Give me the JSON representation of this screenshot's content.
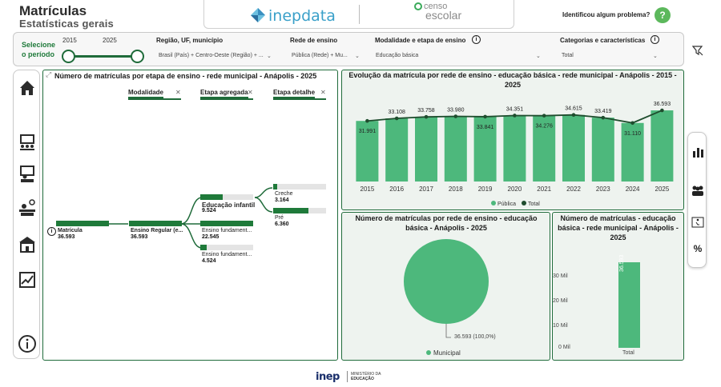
{
  "header": {
    "title": "Matrículas",
    "subtitle": "Estatísticas gerais",
    "logo_inep": "inepdata",
    "logo_censo_line1": "censo",
    "logo_censo_line2": "escolar",
    "help_text": "Identificou algum problema?",
    "help_icon": "?"
  },
  "filters": {
    "period_label_1": "Selecione",
    "period_label_2": "o período",
    "year_start": "2015",
    "year_end": "2025",
    "region_label": "Região, UF, município",
    "region_value": "Brasil (País) + Centro-Oeste (Região) + ...",
    "network_label": "Rede de ensino",
    "network_value": "Pública (Rede) + Mu...",
    "modality_label": "Modalidade e etapa de ensino",
    "modality_value": "Educação básica",
    "categories_label": "Categorias e características",
    "categories_value": "Total"
  },
  "tree": {
    "title": "Número de matrículas por etapa de ensino - rede municipal - Anápolis - 2025",
    "tabs": [
      "Modalidade",
      "Etapa agregada",
      "Etapa detalhe"
    ],
    "root": {
      "label": "Matrícula",
      "value": "36.593",
      "fraction": 1.0
    },
    "level1": {
      "label": "Ensino Regular (e...",
      "value": "36.593",
      "fraction": 1.0
    },
    "level2": [
      {
        "label": "Educação infantil",
        "value": "9.524",
        "fraction": 0.42
      },
      {
        "label": "Ensino fundament...",
        "value": "22.545",
        "fraction": 1.0
      },
      {
        "label": "Ensino fundament...",
        "value": "4.524",
        "fraction": 0.12
      }
    ],
    "level3": [
      {
        "label": "Creche",
        "value": "3.164",
        "fraction": 0.07
      },
      {
        "label": "Pré",
        "value": "6.360",
        "fraction": 0.67
      }
    ]
  },
  "evolution": {
    "title": "Evolução da matrícula por rede de ensino - educação básica - rede municipal - Anápolis - 2015 - 2025",
    "legend_publica": "Pública",
    "legend_total": "Total",
    "colors": {
      "bar": "#4db87c",
      "line": "#1f4d2e"
    }
  },
  "pie": {
    "title": "Número de matrículas por rede de ensino - educação básica - Anápolis - 2025",
    "slice_label": "36.593 (100,0%)",
    "legend": "Municipal",
    "color": "#4db87c"
  },
  "single_bar": {
    "title": "Número de matrículas - educação básica - rede municipal - Anápolis - 2025",
    "ticks": [
      "30 Mil",
      "20 Mil",
      "10 Mil",
      "0 Mil"
    ],
    "bar_label": "36.593",
    "x_label": "Total"
  },
  "chart_data": [
    {
      "type": "bar",
      "title": "Evolução da matrícula por rede de ensino - educação básica - rede municipal - Anápolis - 2015 - 2025",
      "categories": [
        "2015",
        "2016",
        "2017",
        "2018",
        "2019",
        "2020",
        "2021",
        "2022",
        "2023",
        "2024",
        "2025"
      ],
      "series": [
        {
          "name": "Pública",
          "values": [
            31991,
            33108,
            33758,
            33980,
            33841,
            34351,
            34276,
            34615,
            33419,
            31110,
            36593
          ]
        },
        {
          "name": "Total",
          "values": [
            31991,
            33108,
            33758,
            33980,
            33841,
            34351,
            34276,
            34615,
            33419,
            31110,
            36593
          ]
        }
      ],
      "labels": [
        "31.991",
        "33.108",
        "33.758",
        "33.980",
        "33.841",
        "34.351",
        "34.276",
        "34.615",
        "33.419",
        "31.110",
        "36.593"
      ],
      "legend": "bottom"
    },
    {
      "type": "pie",
      "title": "Número de matrículas por rede de ensino - educação básica - Anápolis - 2025",
      "categories": [
        "Municipal"
      ],
      "values": [
        36593
      ]
    },
    {
      "type": "bar",
      "title": "Número de matrículas - educação básica - rede municipal - Anápolis - 2025",
      "categories": [
        "Total"
      ],
      "values": [
        36593
      ],
      "ylim": [
        0,
        38000
      ]
    }
  ]
}
